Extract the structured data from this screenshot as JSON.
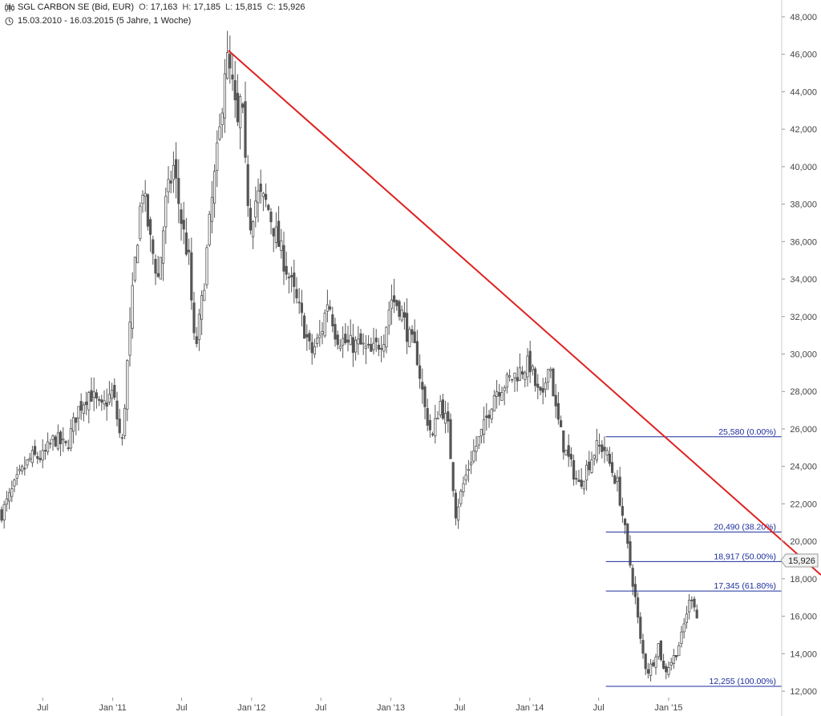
{
  "header": {
    "instrument": "SGL CARBON SE (Bid, EUR)",
    "open_label": "O:",
    "open": "17,163",
    "high_label": "H:",
    "high": "17,185",
    "low_label": "L:",
    "low": "15,815",
    "close_label": "C:",
    "close": "15,926",
    "range": "15.03.2010 - 16.03.2015 (5 Jahre, 1 Woche)"
  },
  "chart_data": {
    "type": "candlestick",
    "title": "SGL CARBON SE (Bid, EUR)",
    "period": "15.03.2010 - 16.03.2015 (5 Jahre, 1 Woche)",
    "interval": "weekly",
    "ylim": [
      12,
      48.5
    ],
    "y_ticks": [
      "12,000",
      "14,000",
      "16,000",
      "18,000",
      "20,000",
      "22,000",
      "24,000",
      "26,000",
      "28,000",
      "30,000",
      "32,000",
      "34,000",
      "36,000",
      "38,000",
      "40,000",
      "42,000",
      "44,000",
      "46,000",
      "48,000"
    ],
    "x_ticks": [
      "Jul",
      "Jan '11",
      "Jul",
      "Jan '12",
      "Jul",
      "Jan '13",
      "Jul",
      "Jan '14",
      "Jul",
      "Jan '15"
    ],
    "colors": {
      "candle": "#555555",
      "trendline": "#e02020",
      "fib": "#1a2d9c",
      "axis_text": "#444444"
    },
    "last_price": "15,926",
    "close_path": [
      [
        "2010-03-15",
        21.5
      ],
      [
        "2010-05-01",
        23.5
      ],
      [
        "2010-06-01",
        24.5
      ],
      [
        "2010-07-01",
        24.5
      ],
      [
        "2010-08-01",
        25.5
      ],
      [
        "2010-09-01",
        25.0
      ],
      [
        "2010-10-01",
        27.0
      ],
      [
        "2010-11-01",
        28.0
      ],
      [
        "2010-12-01",
        27.0
      ],
      [
        "2011-01-01",
        28.0
      ],
      [
        "2011-01-25",
        25.0
      ],
      [
        "2011-02-10",
        30.0
      ],
      [
        "2011-03-01",
        35.0
      ],
      [
        "2011-03-20",
        39.0
      ],
      [
        "2011-04-10",
        36.0
      ],
      [
        "2011-05-01",
        34.0
      ],
      [
        "2011-05-20",
        38.0
      ],
      [
        "2011-06-10",
        40.0
      ],
      [
        "2011-07-01",
        37.0
      ],
      [
        "2011-07-20",
        35.0
      ],
      [
        "2011-08-05",
        30.0
      ],
      [
        "2011-08-25",
        33.0
      ],
      [
        "2011-09-15",
        37.5
      ],
      [
        "2011-10-10",
        42.0
      ],
      [
        "2011-10-25",
        46.0
      ],
      [
        "2011-11-10",
        44.5
      ],
      [
        "2011-11-25",
        42.0
      ],
      [
        "2011-12-05",
        44.0
      ],
      [
        "2011-12-15",
        40.0
      ],
      [
        "2011-12-28",
        37.0
      ],
      [
        "2012-01-15",
        38.5
      ],
      [
        "2012-02-10",
        38.0
      ],
      [
        "2012-03-10",
        36.0
      ],
      [
        "2012-04-10",
        34.0
      ],
      [
        "2012-05-10",
        32.0
      ],
      [
        "2012-06-05",
        30.0
      ],
      [
        "2012-07-01",
        31.0
      ],
      [
        "2012-07-20",
        33.0
      ],
      [
        "2012-08-10",
        31.0
      ],
      [
        "2012-09-10",
        30.5
      ],
      [
        "2012-10-10",
        30.5
      ],
      [
        "2012-11-10",
        30.0
      ],
      [
        "2012-12-15",
        31.0
      ],
      [
        "2013-01-01",
        33.0
      ],
      [
        "2013-01-25",
        32.5
      ],
      [
        "2013-02-15",
        31.0
      ],
      [
        "2013-03-10",
        30.0
      ],
      [
        "2013-04-01",
        27.0
      ],
      [
        "2013-04-20",
        25.5
      ],
      [
        "2013-05-10",
        27.5
      ],
      [
        "2013-06-01",
        26.0
      ],
      [
        "2013-06-20",
        21.5
      ],
      [
        "2013-07-10",
        23.0
      ],
      [
        "2013-08-01",
        24.5
      ],
      [
        "2013-09-01",
        26.0
      ],
      [
        "2013-10-01",
        28.0
      ],
      [
        "2013-11-01",
        28.5
      ],
      [
        "2013-12-01",
        29.0
      ],
      [
        "2014-01-01",
        29.5
      ],
      [
        "2014-01-20",
        28.0
      ],
      [
        "2014-02-05",
        27.5
      ],
      [
        "2014-02-20",
        30.0
      ],
      [
        "2014-03-10",
        27.0
      ],
      [
        "2014-04-01",
        25.0
      ],
      [
        "2014-04-20",
        24.0
      ],
      [
        "2014-05-10",
        23.0
      ],
      [
        "2014-06-01",
        24.0
      ],
      [
        "2014-06-25",
        25.0
      ],
      [
        "2014-07-15",
        25.0
      ],
      [
        "2014-08-01",
        24.0
      ],
      [
        "2014-08-20",
        23.0
      ],
      [
        "2014-09-05",
        21.0
      ],
      [
        "2014-09-20",
        19.0
      ],
      [
        "2014-10-05",
        17.0
      ],
      [
        "2014-10-20",
        14.5
      ],
      [
        "2014-11-05",
        13.0
      ],
      [
        "2014-11-20",
        13.5
      ],
      [
        "2014-12-05",
        14.5
      ],
      [
        "2014-12-20",
        13.0
      ],
      [
        "2015-01-05",
        13.5
      ],
      [
        "2015-01-20",
        14.0
      ],
      [
        "2015-02-05",
        15.0
      ],
      [
        "2015-02-20",
        16.5
      ],
      [
        "2015-03-05",
        17.2
      ],
      [
        "2015-03-16",
        15.926
      ]
    ],
    "trendline": {
      "from": [
        "2011-11-01",
        46.2
      ],
      "to": [
        "2015-04-15",
        18.2
      ]
    },
    "fib_levels": [
      {
        "value": 25.58,
        "label": "25,580 (0.00%)"
      },
      {
        "value": 20.49,
        "label": "20,490 (38.20%)"
      },
      {
        "value": 18.917,
        "label": "18,917 (50.00%)"
      },
      {
        "value": 17.345,
        "label": "17,345 (61.80%)"
      },
      {
        "value": 12.255,
        "label": "12,255 (100.00%)"
      }
    ],
    "fib_start_date": "2014-07-20"
  }
}
